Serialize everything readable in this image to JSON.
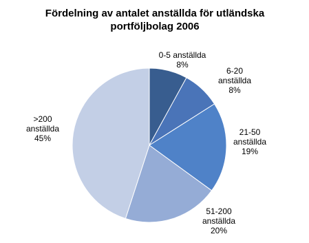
{
  "chart_data": {
    "type": "pie",
    "title": "Fördelning av antalet anställda för utländska portföljbolag 2006",
    "categories": [
      "0-5 anställda",
      "6-20 anställda",
      "21-50 anställda",
      "51-200 anställda",
      ">200 anställda"
    ],
    "values": [
      8,
      8,
      19,
      20,
      45
    ],
    "value_labels": [
      "8%",
      "8%",
      "19%",
      "20%",
      "45%"
    ],
    "colors": [
      "#385d8f",
      "#4a74b8",
      "#4f82c8",
      "#95acd6",
      "#c3cfe6"
    ]
  }
}
